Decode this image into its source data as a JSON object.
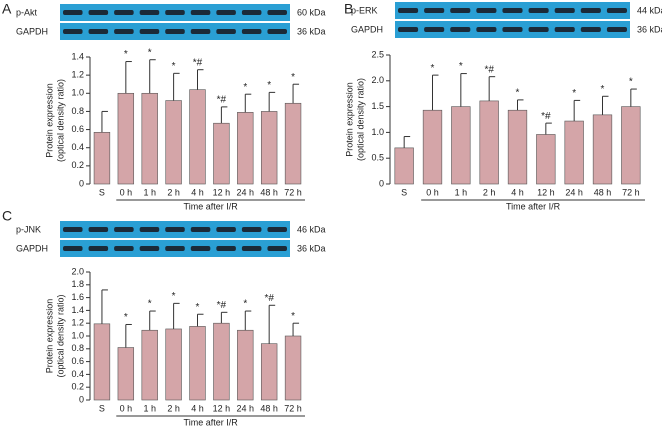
{
  "chart_data": [
    {
      "type": "bar",
      "panel": "A",
      "blots": [
        {
          "label": "p-Akt",
          "size": "60 kDa"
        },
        {
          "label": "GAPDH",
          "size": "36 kDa"
        }
      ],
      "ylabel": [
        "Protein expression",
        "(optical density ratio)"
      ],
      "xlabel": "Time after I/R",
      "categories": [
        "S",
        "0 h",
        "1 h",
        "2 h",
        "4 h",
        "12 h",
        "24 h",
        "48 h",
        "72 h"
      ],
      "values": [
        0.57,
        1.0,
        1.0,
        0.92,
        1.04,
        0.67,
        0.79,
        0.8,
        0.89
      ],
      "errors": [
        0.23,
        0.35,
        0.37,
        0.3,
        0.22,
        0.18,
        0.2,
        0.21,
        0.21
      ],
      "annotations": [
        null,
        "*",
        "*",
        "*",
        "*#",
        "*#",
        "*",
        "*",
        "*"
      ],
      "color": "#d4a5a8",
      "ylim": [
        0,
        1.4
      ],
      "yticks": [
        0,
        0.2,
        0.4,
        0.6,
        0.8,
        {
          "value": 1,
          "label": "1.0"
        },
        1.2,
        1.4
      ]
    },
    {
      "type": "bar",
      "panel": "B",
      "blots": [
        {
          "label": "p-ERK",
          "size": "44 kDa"
        },
        {
          "label": "GAPDH",
          "size": "36 kDa"
        }
      ],
      "ylabel": [
        "Protein expression",
        "(optical density ratio)"
      ],
      "xlabel": "Time after I/R",
      "categories": [
        "S",
        "0 h",
        "1 h",
        "2 h",
        "4 h",
        "12 h",
        "24 h",
        "48 h",
        "72 h"
      ],
      "values": [
        0.7,
        1.43,
        1.5,
        1.61,
        1.43,
        0.96,
        1.22,
        1.34,
        1.5
      ],
      "errors": [
        0.22,
        0.68,
        0.64,
        0.47,
        0.2,
        0.22,
        0.4,
        0.36,
        0.34
      ],
      "annotations": [
        null,
        "*",
        "*",
        "*#",
        "*",
        "*#",
        "*",
        "*",
        "*"
      ],
      "color": "#d4a5a8",
      "ylim": [
        0,
        2.5
      ],
      "yticks": [
        0,
        0.5,
        {
          "value": 1,
          "label": "1.0"
        },
        1.5,
        {
          "value": 2,
          "label": "2.0"
        },
        2.5
      ]
    },
    {
      "type": "bar",
      "panel": "C",
      "blots": [
        {
          "label": "p-JNK",
          "size": "46 kDa"
        },
        {
          "label": "GAPDH",
          "size": "36 kDa"
        }
      ],
      "ylabel": [
        "Protein expression",
        "(optical density ratio)"
      ],
      "xlabel": "Time after I/R",
      "categories": [
        "S",
        "0 h",
        "1 h",
        "2 h",
        "4 h",
        "12 h",
        "24 h",
        "48 h",
        "72 h"
      ],
      "values": [
        1.19,
        0.82,
        1.09,
        1.11,
        1.15,
        1.2,
        1.09,
        0.88,
        1.0
      ],
      "errors": [
        0.53,
        0.36,
        0.3,
        0.4,
        0.19,
        0.17,
        0.3,
        0.6,
        0.2
      ],
      "annotations": [
        null,
        "*",
        "*",
        "*",
        "*",
        "*#",
        "*",
        "*#",
        "*"
      ],
      "color": "#d4a5a8",
      "ylim": [
        0,
        2
      ],
      "yticks": [
        0,
        0.2,
        0.4,
        0.6,
        0.8,
        {
          "value": 1,
          "label": "1.0"
        },
        1.2,
        1.4,
        1.6,
        1.8,
        {
          "value": 2,
          "label": "2.0"
        }
      ]
    }
  ]
}
